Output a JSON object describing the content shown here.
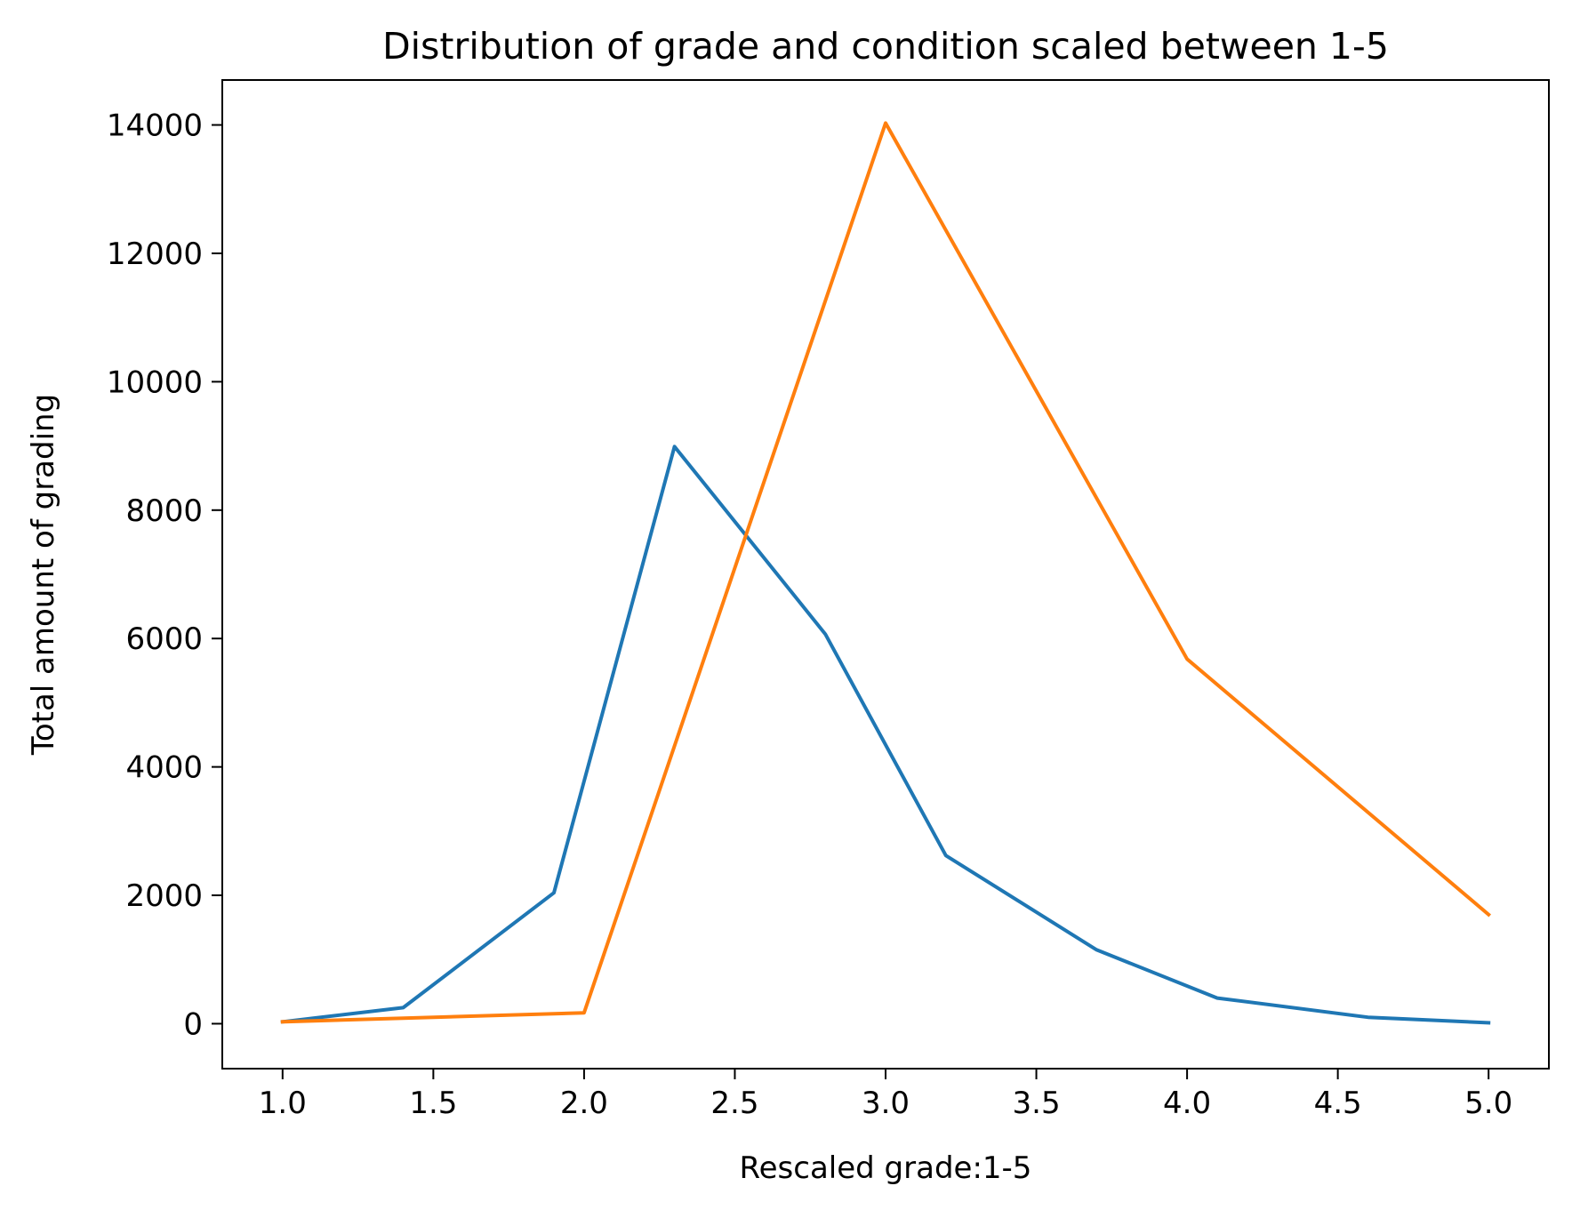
{
  "chart_data": {
    "type": "line",
    "title": "Distribution of grade and condition scaled between 1-5",
    "xlabel": "Rescaled grade:1-5",
    "ylabel": "Total amount of grading",
    "xlim": [
      0.8,
      5.2
    ],
    "ylim": [
      -700,
      14700
    ],
    "x_ticks": [
      1.0,
      1.5,
      2.0,
      2.5,
      3.0,
      3.5,
      4.0,
      4.5,
      5.0
    ],
    "x_tick_labels": [
      "1.0",
      "1.5",
      "2.0",
      "2.5",
      "3.0",
      "3.5",
      "4.0",
      "4.5",
      "5.0"
    ],
    "y_ticks": [
      0,
      2000,
      4000,
      6000,
      8000,
      10000,
      12000,
      14000
    ],
    "y_tick_labels": [
      "0",
      "2000",
      "4000",
      "6000",
      "8000",
      "10000",
      "12000",
      "14000"
    ],
    "grid": false,
    "legend": false,
    "series": [
      {
        "color": "#1f77b4",
        "x": [
          1.0,
          1.4,
          1.9,
          2.3,
          2.8,
          3.2,
          3.7,
          4.1,
          4.6,
          5.0
        ],
        "y": [
          30,
          250,
          2040,
          8990,
          6070,
          2620,
          1150,
          400,
          100,
          15
        ]
      },
      {
        "color": "#ff7f0e",
        "x": [
          1.0,
          2.0,
          3.0,
          4.0,
          5.0
        ],
        "y": [
          30,
          170,
          14030,
          5680,
          1700
        ]
      }
    ]
  }
}
